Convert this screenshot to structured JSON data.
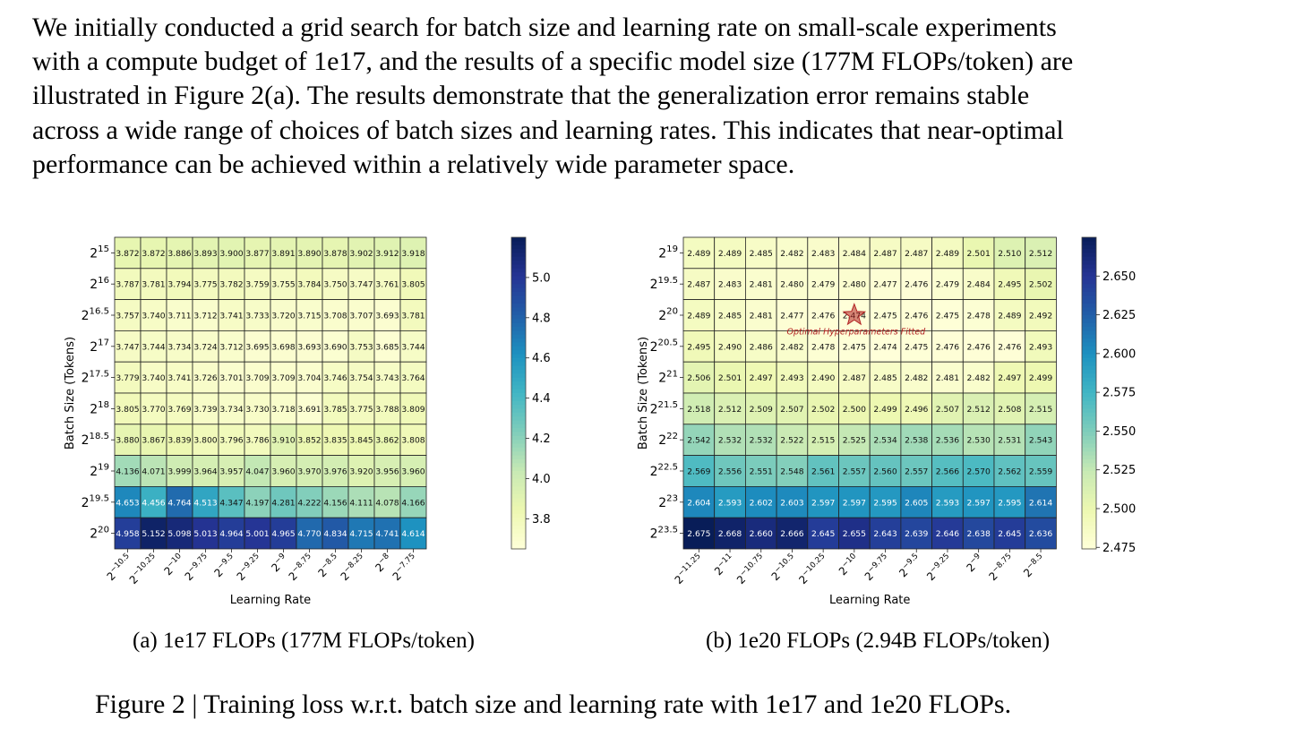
{
  "paragraph": {
    "lines": [
      "We initially conducted a grid search for batch size and learning rate on small-scale experiments",
      "with a compute budget of 1e17, and the results of a specific model size (177M FLOPs/token) are",
      "illustrated in Figure 2(a). The results demonstrate that the generalization error remains stable",
      "across a wide range of choices of batch sizes and learning rates. This indicates that near-optimal",
      "performance can be achieved within a relatively wide parameter space."
    ]
  },
  "figure": {
    "caption": "Figure 2 | Training loss w.r.t. batch size and learning rate with 1e17 and 1e20 FLOPs.",
    "subcaptions": [
      "(a)  1e17 FLOPs (177M FLOPs/token)",
      "(b)  1e20 FLOPs (2.94B FLOPs/token)"
    ]
  },
  "chart_data": [
    {
      "type": "heatmap",
      "title": "",
      "xlabel": "Learning Rate",
      "ylabel": "Batch Size (Tokens)",
      "x_exponents": [
        "−10.5",
        "−10.25",
        "−10",
        "−9.75",
        "−9.5",
        "−9.25",
        "−9",
        "−8.75",
        "−8.5",
        "−8.25",
        "−8",
        "−7.75"
      ],
      "y_exponents": [
        "15",
        "16",
        "16.5",
        "17",
        "17.5",
        "18",
        "18.5",
        "19",
        "19.5",
        "20"
      ],
      "values": [
        [
          3.872,
          3.872,
          3.886,
          3.893,
          3.9,
          3.877,
          3.891,
          3.89,
          3.878,
          3.902,
          3.912,
          3.918
        ],
        [
          3.787,
          3.781,
          3.794,
          3.775,
          3.782,
          3.759,
          3.755,
          3.784,
          3.75,
          3.747,
          3.761,
          3.805
        ],
        [
          3.757,
          3.74,
          3.711,
          3.712,
          3.741,
          3.733,
          3.72,
          3.715,
          3.708,
          3.707,
          3.693,
          3.781
        ],
        [
          3.747,
          3.744,
          3.734,
          3.724,
          3.712,
          3.695,
          3.698,
          3.693,
          3.69,
          3.753,
          3.685,
          3.744
        ],
        [
          3.779,
          3.74,
          3.741,
          3.726,
          3.701,
          3.709,
          3.709,
          3.704,
          3.746,
          3.754,
          3.743,
          3.764
        ],
        [
          3.805,
          3.77,
          3.769,
          3.739,
          3.734,
          3.73,
          3.718,
          3.691,
          3.785,
          3.775,
          3.788,
          3.809
        ],
        [
          3.88,
          3.867,
          3.839,
          3.8,
          3.796,
          3.786,
          3.91,
          3.852,
          3.835,
          3.845,
          3.862,
          3.808
        ],
        [
          4.136,
          4.071,
          3.999,
          3.964,
          3.957,
          4.047,
          3.96,
          3.97,
          3.976,
          3.92,
          3.956,
          3.96
        ],
        [
          4.653,
          4.456,
          4.764,
          4.513,
          4.347,
          4.197,
          4.281,
          4.222,
          4.156,
          4.111,
          4.078,
          4.166
        ],
        [
          4.958,
          5.152,
          5.098,
          5.013,
          4.964,
          5.001,
          4.965,
          4.77,
          4.834,
          4.715,
          4.741,
          4.614
        ]
      ],
      "colorbar": {
        "min": 3.65,
        "max": 5.2,
        "ticks": [
          3.8,
          4.0,
          4.2,
          4.4,
          4.6,
          4.8,
          5.0
        ],
        "tick_labels": [
          "3.8",
          "4.0",
          "4.2",
          "4.4",
          "4.6",
          "4.8",
          "5.0"
        ]
      },
      "colormap": [
        "#ffffd9",
        "#edf8b1",
        "#c7e9b4",
        "#7fcdbb",
        "#41b6c4",
        "#1d91c0",
        "#225ea8",
        "#253494",
        "#081d58"
      ]
    },
    {
      "type": "heatmap",
      "title": "",
      "xlabel": "Learning Rate",
      "ylabel": "Batch Size (Tokens)",
      "x_exponents": [
        "−11.25",
        "−11",
        "−10.75",
        "−10.5",
        "−10.25",
        "−10",
        "−9.75",
        "−9.5",
        "−9.25",
        "−9",
        "−8.75",
        "−8.5"
      ],
      "y_exponents": [
        "19",
        "19.5",
        "20",
        "20.5",
        "21",
        "21.5",
        "22",
        "22.5",
        "23",
        "23.5"
      ],
      "values": [
        [
          2.489,
          2.489,
          2.485,
          2.482,
          2.483,
          2.484,
          2.487,
          2.487,
          2.489,
          2.501,
          2.51,
          2.512
        ],
        [
          2.487,
          2.483,
          2.481,
          2.48,
          2.479,
          2.48,
          2.477,
          2.476,
          2.479,
          2.484,
          2.495,
          2.502
        ],
        [
          2.489,
          2.485,
          2.481,
          2.477,
          2.476,
          2.474,
          2.475,
          2.476,
          2.475,
          2.478,
          2.489,
          2.492
        ],
        [
          2.495,
          2.49,
          2.486,
          2.482,
          2.478,
          2.475,
          2.474,
          2.475,
          2.476,
          2.476,
          2.476,
          2.493
        ],
        [
          2.506,
          2.501,
          2.497,
          2.493,
          2.49,
          2.487,
          2.485,
          2.482,
          2.481,
          2.482,
          2.497,
          2.499
        ],
        [
          2.518,
          2.512,
          2.509,
          2.507,
          2.502,
          2.5,
          2.499,
          2.496,
          2.507,
          2.512,
          2.508,
          2.515
        ],
        [
          2.542,
          2.532,
          2.532,
          2.522,
          2.515,
          2.525,
          2.534,
          2.538,
          2.536,
          2.53,
          2.531,
          2.543
        ],
        [
          2.569,
          2.556,
          2.551,
          2.548,
          2.561,
          2.557,
          2.56,
          2.557,
          2.566,
          2.57,
          2.562,
          2.559
        ],
        [
          2.604,
          2.593,
          2.602,
          2.603,
          2.597,
          2.597,
          2.595,
          2.605,
          2.593,
          2.597,
          2.595,
          2.614
        ],
        [
          2.675,
          2.668,
          2.66,
          2.666,
          2.645,
          2.655,
          2.643,
          2.639,
          2.646,
          2.638,
          2.645,
          2.636
        ]
      ],
      "colorbar": {
        "min": 2.474,
        "max": 2.675,
        "ticks": [
          2.475,
          2.5,
          2.525,
          2.55,
          2.575,
          2.6,
          2.625,
          2.65
        ],
        "tick_labels": [
          "2.475",
          "2.500",
          "2.525",
          "2.550",
          "2.575",
          "2.600",
          "2.625",
          "2.650"
        ]
      },
      "colormap": [
        "#ffffd9",
        "#edf8b1",
        "#c7e9b4",
        "#7fcdbb",
        "#41b6c4",
        "#1d91c0",
        "#225ea8",
        "#253494",
        "#081d58"
      ],
      "annotation": {
        "text": "Optimal Hyperparameters Fitted",
        "marker": "star",
        "marker_color": "#b22222",
        "x_exponent": "−10",
        "y_exponent": "20"
      }
    }
  ]
}
